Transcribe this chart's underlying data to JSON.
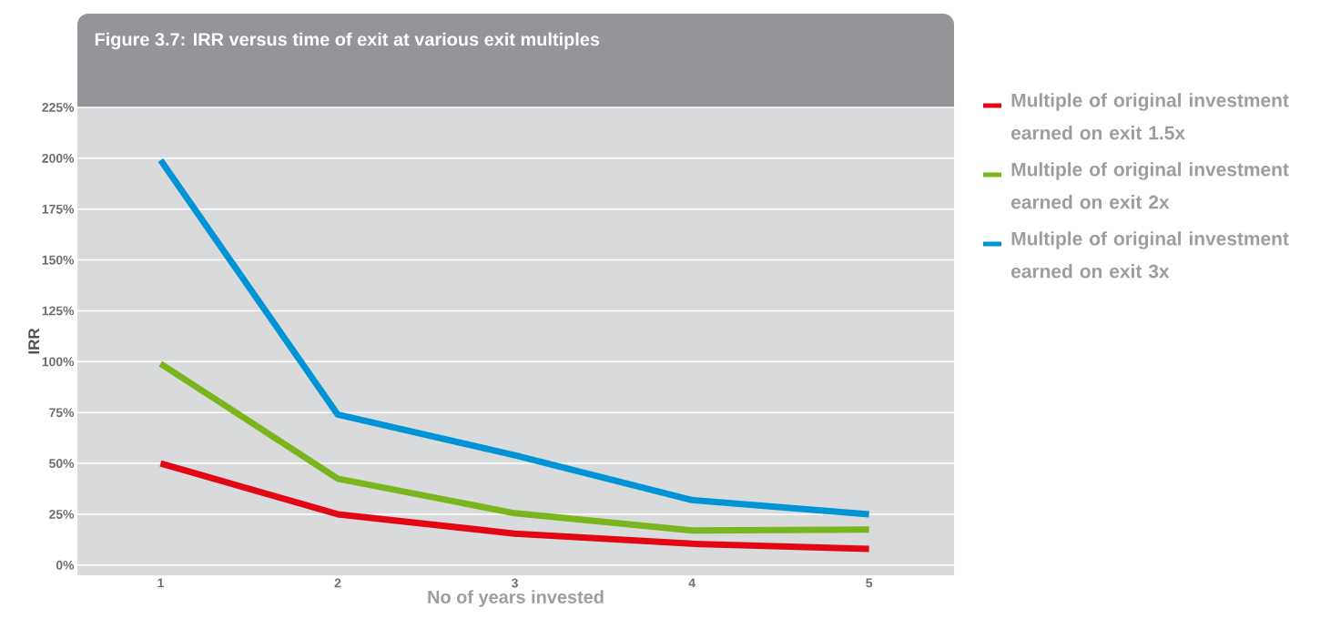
{
  "chart_data": {
    "type": "line",
    "title": "Figure 3.7: IRR versus time of exit at various exit multiples",
    "xlabel": "No of years invested",
    "ylabel": "IRR",
    "x": [
      1,
      2,
      3,
      4,
      5
    ],
    "series": [
      {
        "name": "Multiple of original investment earned on exit 1.5x",
        "color": "#e30613",
        "values": [
          50,
          25,
          15.5,
          10.5,
          8
        ]
      },
      {
        "name": "Multiple of original investment earned on exit 2x",
        "color": "#7ab51d",
        "values": [
          99,
          42.5,
          25.5,
          17,
          17.5
        ]
      },
      {
        "name": "Multiple of original investment earned on exit 3x",
        "color": "#0093d5",
        "values": [
          199,
          74,
          54,
          32,
          25
        ]
      }
    ],
    "xlim": [
      0.53,
      5.48
    ],
    "xticks": [
      1,
      2,
      3,
      4,
      5
    ],
    "ylim": [
      -5,
      225
    ],
    "yticks": [
      {
        "value": 0,
        "label": "0%"
      },
      {
        "value": 25,
        "label": "25%"
      },
      {
        "value": 50,
        "label": "50%"
      },
      {
        "value": 75,
        "label": "75%"
      },
      {
        "value": 100,
        "label": "100%"
      },
      {
        "value": 125,
        "label": "125%"
      },
      {
        "value": 150,
        "label": "150%"
      },
      {
        "value": 175,
        "label": "175%"
      },
      {
        "value": 200,
        "label": "200%"
      },
      {
        "value": 225,
        "label": "225%"
      }
    ],
    "grid": "y",
    "legend": "right",
    "marker": "none",
    "line_style": "solid"
  }
}
